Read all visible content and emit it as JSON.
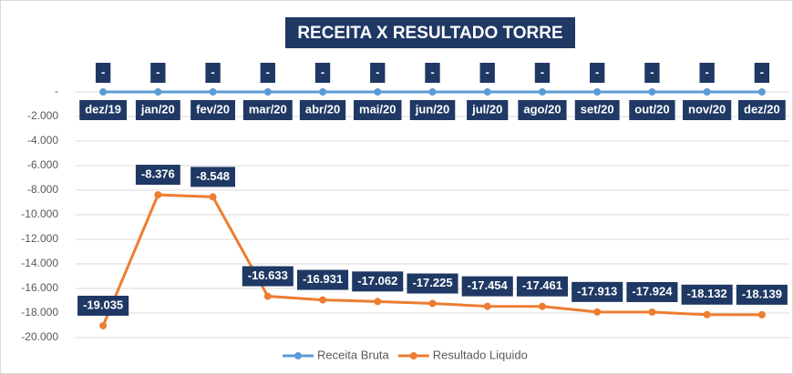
{
  "chart_data": {
    "type": "line",
    "title": "RECEITA X RESULTADO TORRE",
    "categories": [
      "dez/19",
      "jan/20",
      "fev/20",
      "mar/20",
      "abr/20",
      "mai/20",
      "jun/20",
      "jul/20",
      "ago/20",
      "set/20",
      "out/20",
      "nov/20",
      "dez/20"
    ],
    "series": [
      {
        "name": "Receita Bruta",
        "color": "#5b9bd5",
        "values": [
          0,
          0,
          0,
          0,
          0,
          0,
          0,
          0,
          0,
          0,
          0,
          0,
          0
        ],
        "value_labels": [
          "-",
          "-",
          "-",
          "-",
          "-",
          "-",
          "-",
          "-",
          "-",
          "-",
          "-",
          "-",
          "-"
        ]
      },
      {
        "name": "Resultado Liquido",
        "color": "#ed7d31",
        "values": [
          -19035,
          -8376,
          -8548,
          -16633,
          -16931,
          -17062,
          -17225,
          -17454,
          -17461,
          -17913,
          -17924,
          -18132,
          -18139
        ],
        "value_labels": [
          "-19.035",
          "-8.376",
          "-8.548",
          "-16.633",
          "-16.931",
          "-17.062",
          "-17.225",
          "-17.454",
          "-17.461",
          "-17.913",
          "-17.924",
          "-18.132",
          "-18.139"
        ]
      }
    ],
    "ylim": [
      -20000,
      0
    ],
    "yticks": [
      {
        "value": 0,
        "label": "-"
      },
      {
        "value": -2000,
        "label": "-2.000"
      },
      {
        "value": -4000,
        "label": "-4.000"
      },
      {
        "value": -6000,
        "label": "-6.000"
      },
      {
        "value": -8000,
        "label": "-8.000"
      },
      {
        "value": -10000,
        "label": "-10.000"
      },
      {
        "value": -12000,
        "label": "-12.000"
      },
      {
        "value": -14000,
        "label": "-14.000"
      },
      {
        "value": -16000,
        "label": "-16.000"
      },
      {
        "value": -18000,
        "label": "-18.000"
      },
      {
        "value": -20000,
        "label": "-20.000"
      }
    ],
    "grid": true,
    "legend": "bottom"
  }
}
